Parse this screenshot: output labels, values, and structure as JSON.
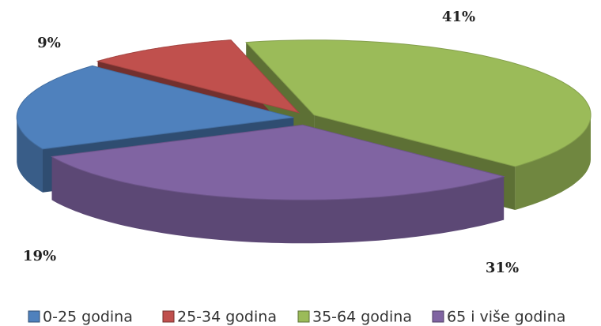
{
  "chart_data": {
    "type": "pie3d",
    "categories": [
      "0-25 godina",
      "25-34 godina",
      "35-64 godina",
      "65 i više godina"
    ],
    "values": [
      19,
      9,
      41,
      31
    ],
    "value_labels": [
      "19%",
      "9%",
      "41%",
      "31%"
    ],
    "colors": [
      "#4f81bd",
      "#c0504d",
      "#9bbb59",
      "#8064a2"
    ],
    "legend": "bottom"
  }
}
